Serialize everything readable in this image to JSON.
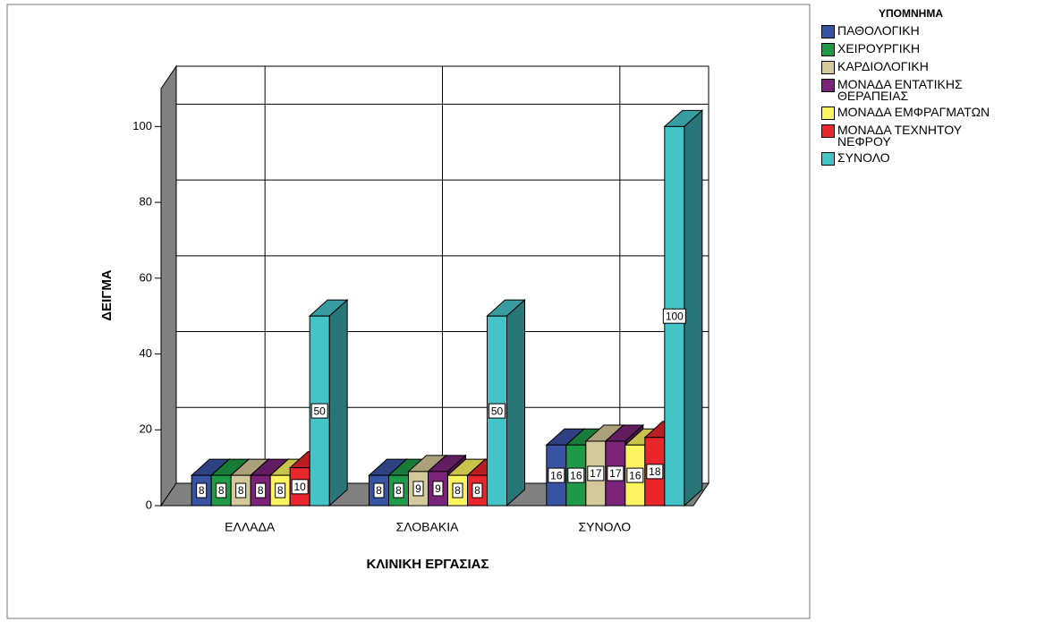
{
  "chart_data": {
    "type": "bar3d",
    "x_label": "ΚΛΙΝΙΚΗ ΕΡΓΑΣΙΑΣ",
    "y_label": "ΔΕΙΓΜΑ",
    "legend_title": "ΥΠΟΜΝΗΜΑ",
    "categories": [
      "ΕΛΛΑΔΑ",
      "ΣΛΟΒΑΚΙΑ",
      "ΣΥΝΟΛΟ"
    ],
    "series": [
      {
        "name": "ΠΑΘΟΛΟΓΙΚΗ",
        "color": "#3953a4",
        "values": [
          8,
          8,
          16
        ]
      },
      {
        "name": "ΧΕΙΡΟΥΡΓΙΚΗ",
        "color": "#1f9a46",
        "values": [
          8,
          8,
          16
        ]
      },
      {
        "name": "ΚΑΡΔΙΟΛΟΓΙΚΗ",
        "color": "#d4c99a",
        "values": [
          8,
          9,
          17
        ]
      },
      {
        "name": "ΜΟΝΑΔΑ ΕΝΤΑΤΙΚΗΣ ΘΕΡΑΠΕΙΑΣ",
        "color": "#7b2379",
        "values": [
          8,
          9,
          17
        ]
      },
      {
        "name": "ΜΟΝΑΔΑ ΕΜΦΡΑΓΜΑΤΩΝ",
        "color": "#fcf45e",
        "values": [
          8,
          8,
          16
        ]
      },
      {
        "name": "ΜΟΝΑΔΑ ΤΕΧΝΗΤΟΥ ΝΕΦΡΟΥ",
        "color": "#e8262c",
        "values": [
          10,
          8,
          18
        ]
      },
      {
        "name": "ΣΥΝΟΛΟ",
        "color": "#45c4c8",
        "values": [
          50,
          50,
          100
        ]
      }
    ],
    "ylim": [
      0,
      110
    ],
    "yticks": [
      0,
      20,
      40,
      60,
      80,
      100
    ],
    "grid": true,
    "legend": "right"
  }
}
